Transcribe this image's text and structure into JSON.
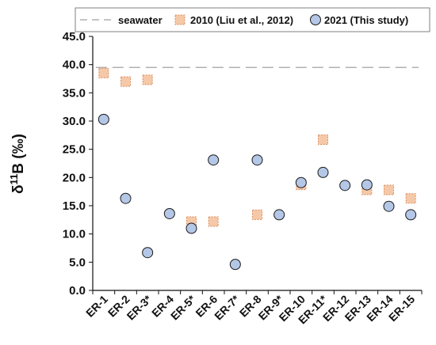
{
  "chart_data": {
    "type": "scatter",
    "categories": [
      "ER-1",
      "ER-2",
      "ER-3*",
      "ER-4",
      "ER-5*",
      "ER-6",
      "ER-7*",
      "ER-8",
      "ER-9*",
      "ER-10",
      "ER-11*",
      "ER-12",
      "ER-13",
      "ER-14",
      "ER-15"
    ],
    "ylabel_main": "δ",
    "ylabel_sup": "11",
    "ylabel_rest": "B (‰)",
    "ylim": [
      0,
      45
    ],
    "ytick_step": 5,
    "ytick_labels": [
      "0.0",
      "5.0",
      "10.0",
      "15.0",
      "20.0",
      "25.0",
      "30.0",
      "35.0",
      "40.0",
      "45.0"
    ],
    "grid": false,
    "legend_position": "top",
    "seawater": {
      "name": "seawater",
      "value": 39.5,
      "color": "#b0b0b0"
    },
    "series": [
      {
        "name": "2010 (Liu et al., 2012)",
        "marker": "square",
        "color": "#f5c9a8",
        "edge_color": "#d98c5f",
        "values": [
          38.5,
          37.0,
          37.3,
          null,
          12.2,
          12.2,
          null,
          13.4,
          null,
          18.7,
          26.7,
          null,
          17.8,
          17.8,
          16.3
        ]
      },
      {
        "name": "2021 (This study)",
        "marker": "circle",
        "color": "#b4c7e7",
        "edge_color": "#1a1a1a",
        "values": [
          30.3,
          16.3,
          6.7,
          13.6,
          11.0,
          23.1,
          4.6,
          23.1,
          13.4,
          19.1,
          20.9,
          18.6,
          18.7,
          14.9,
          13.4
        ]
      }
    ]
  }
}
